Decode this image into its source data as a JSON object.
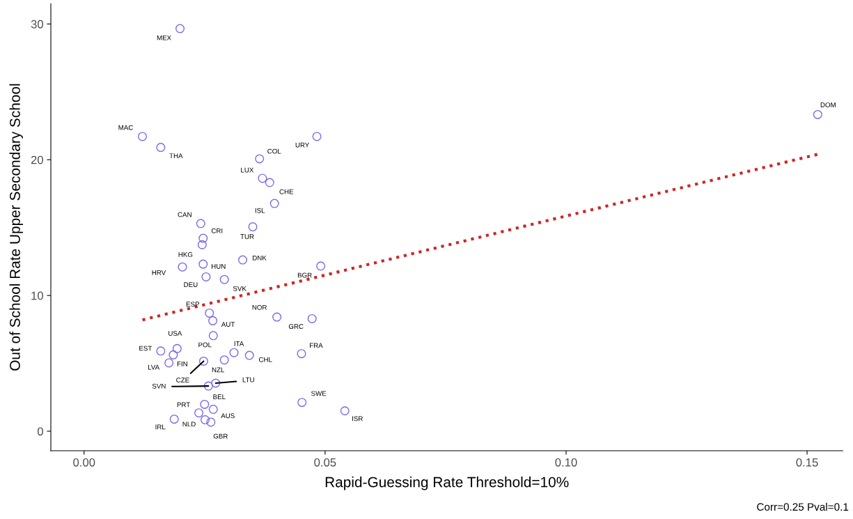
{
  "chart_data": {
    "type": "scatter",
    "xlabel": "Rapid-Guessing Rate Threshold=10%",
    "ylabel": "Out of School Rate Upper Secondary School",
    "xlim": [
      -0.0069,
      0.1574
    ],
    "ylim": [
      -1.44,
      31.5
    ],
    "xticks": [
      {
        "value": 0,
        "label": "0.00"
      },
      {
        "value": 0.05,
        "label": "0.05"
      },
      {
        "value": 0.1,
        "label": "0.10"
      },
      {
        "value": 0.15,
        "label": "0.15"
      }
    ],
    "yticks": [
      0,
      10,
      20,
      30
    ],
    "grid": false,
    "legend": false,
    "series": [
      {
        "color": "#7b68ee",
        "marker": "circle",
        "x": [
          0.0199,
          0.0121,
          0.0159,
          0.0364,
          0.0483,
          0.037,
          0.0385,
          0.1522,
          0.0395,
          0.0242,
          0.0247,
          0.0245,
          0.035,
          0.0329,
          0.0204,
          0.0247,
          0.0253,
          0.0291,
          0.0491,
          0.026,
          0.0267,
          0.04,
          0.0473,
          0.0193,
          0.0268,
          0.0159,
          0.0185,
          0.0176,
          0.0311,
          0.0343,
          0.0451,
          0.0291,
          0.0248,
          0.0258,
          0.0273,
          0.0452,
          0.025,
          0.0268,
          0.0238,
          0.0251,
          0.0263,
          0.0187,
          0.0541
        ],
        "values": [
          29.66,
          21.71,
          20.91,
          20.07,
          21.71,
          18.63,
          18.32,
          23.33,
          16.78,
          15.3,
          14.21,
          13.74,
          15.06,
          12.62,
          12.1,
          12.31,
          11.37,
          11.18,
          12.17,
          8.7,
          8.14,
          8.41,
          8.29,
          6.09,
          7.04,
          5.91,
          5.63,
          5.03,
          5.79,
          5.59,
          5.71,
          5.25,
          5.16,
          3.33,
          3.54,
          2.12,
          1.98,
          1.61,
          1.35,
          0.84,
          0.67,
          0.89,
          1.5
        ]
      },
      {
        "type": "line",
        "color": "#cd2626",
        "line_style": "dotted",
        "marker": "none",
        "x": [
          0.0121,
          0.1522
        ],
        "values": [
          8.2,
          20.4
        ]
      }
    ],
    "annotations": [
      {
        "text": "MEX",
        "x": 0.0199,
        "y": 29.66
      },
      {
        "text": "MAC",
        "x": 0.0121,
        "y": 21.71
      },
      {
        "text": "THA",
        "x": 0.0159,
        "y": 20.91
      },
      {
        "text": "COL",
        "x": 0.0364,
        "y": 20.07
      },
      {
        "text": "URY",
        "x": 0.0483,
        "y": 21.71
      },
      {
        "text": "LUX",
        "x": 0.037,
        "y": 18.63
      },
      {
        "text": "CHE",
        "x": 0.0385,
        "y": 18.32
      },
      {
        "text": "DOM",
        "x": 0.1522,
        "y": 23.33
      },
      {
        "text": "ISL",
        "x": 0.0395,
        "y": 16.78
      },
      {
        "text": "CAN",
        "x": 0.0242,
        "y": 15.3
      },
      {
        "text": "CRI",
        "x": 0.0247,
        "y": 14.21
      },
      {
        "text": "HKG",
        "x": 0.0245,
        "y": 13.74
      },
      {
        "text": "TUR",
        "x": 0.035,
        "y": 15.06
      },
      {
        "text": "DNK",
        "x": 0.0329,
        "y": 12.62
      },
      {
        "text": "HRV",
        "x": 0.0204,
        "y": 12.1
      },
      {
        "text": "HUN",
        "x": 0.0247,
        "y": 12.31
      },
      {
        "text": "DEU",
        "x": 0.0253,
        "y": 11.37
      },
      {
        "text": "SVK",
        "x": 0.0291,
        "y": 11.18
      },
      {
        "text": "BGR",
        "x": 0.0491,
        "y": 12.17
      },
      {
        "text": "ESP",
        "x": 0.026,
        "y": 8.7
      },
      {
        "text": "AUT",
        "x": 0.0267,
        "y": 8.14
      },
      {
        "text": "NOR",
        "x": 0.04,
        "y": 8.41
      },
      {
        "text": "GRC",
        "x": 0.0473,
        "y": 8.29
      },
      {
        "text": "USA",
        "x": 0.0193,
        "y": 6.09
      },
      {
        "text": "POL",
        "x": 0.0268,
        "y": 7.04
      },
      {
        "text": "EST",
        "x": 0.0159,
        "y": 5.91
      },
      {
        "text": "FIN",
        "x": 0.0185,
        "y": 5.63
      },
      {
        "text": "LVA",
        "x": 0.0176,
        "y": 5.03
      },
      {
        "text": "ITA",
        "x": 0.0311,
        "y": 5.79
      },
      {
        "text": "CHL",
        "x": 0.0343,
        "y": 5.59
      },
      {
        "text": "FRA",
        "x": 0.0451,
        "y": 5.71
      },
      {
        "text": "NZL",
        "x": 0.0291,
        "y": 5.25
      },
      {
        "text": "CZE",
        "x": 0.0248,
        "y": 5.16
      },
      {
        "text": "SVN",
        "x": 0.0258,
        "y": 3.33
      },
      {
        "text": "LTU",
        "x": 0.0273,
        "y": 3.54
      },
      {
        "text": "SWE",
        "x": 0.0452,
        "y": 2.12
      },
      {
        "text": "BEL",
        "x": 0.025,
        "y": 1.98
      },
      {
        "text": "AUS",
        "x": 0.0268,
        "y": 1.61
      },
      {
        "text": "PRT",
        "x": 0.0238,
        "y": 1.35
      },
      {
        "text": "NLD",
        "x": 0.0251,
        "y": 0.84
      },
      {
        "text": "GBR",
        "x": 0.0263,
        "y": 0.67
      },
      {
        "text": "IRL",
        "x": 0.0187,
        "y": 0.89
      },
      {
        "text": "ISR",
        "x": 0.0541,
        "y": 1.5
      },
      "Corr=0.25 Pval=0.1"
    ]
  }
}
